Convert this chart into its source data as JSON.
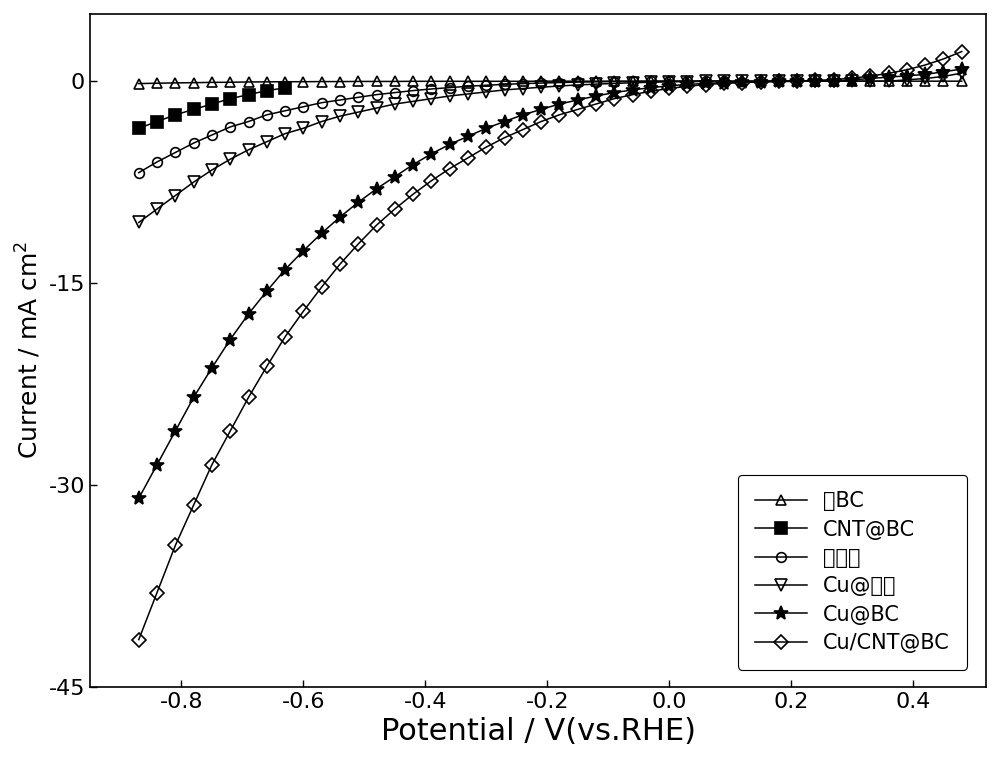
{
  "xlabel": "Potential / V(vs.RHE)",
  "ylabel_part1": "Current / mA cm",
  "ylabel_exp": "2",
  "xlim": [
    -0.95,
    0.52
  ],
  "ylim": [
    -45,
    5
  ],
  "yticks": [
    0,
    -15,
    -30,
    -45
  ],
  "xticks": [
    -0.8,
    -0.6,
    -0.4,
    -0.2,
    0.0,
    0.2,
    0.4
  ],
  "background_color": "#ffffff",
  "series": [
    {
      "label": "绬BC",
      "marker": "^",
      "marker_fill": "none",
      "x": [
        -0.87,
        -0.84,
        -0.81,
        -0.78,
        -0.75,
        -0.72,
        -0.69,
        -0.66,
        -0.63,
        -0.6,
        -0.57,
        -0.54,
        -0.51,
        -0.48,
        -0.45,
        -0.42,
        -0.39,
        -0.36,
        -0.33,
        -0.3,
        -0.27,
        -0.24,
        -0.21,
        -0.18,
        -0.15,
        -0.12,
        -0.09,
        -0.06,
        -0.03,
        0.0,
        0.03,
        0.06,
        0.09,
        0.12,
        0.15,
        0.18,
        0.21,
        0.24,
        0.27,
        0.3,
        0.33,
        0.36,
        0.39,
        0.42,
        0.45,
        0.48
      ],
      "y": [
        -0.18,
        -0.15,
        -0.13,
        -0.11,
        -0.09,
        -0.08,
        -0.06,
        -0.05,
        -0.04,
        -0.04,
        -0.03,
        -0.03,
        -0.02,
        -0.02,
        -0.02,
        -0.01,
        -0.01,
        -0.01,
        -0.01,
        -0.01,
        -0.01,
        -0.01,
        0.0,
        0.0,
        0.0,
        0.0,
        0.0,
        0.0,
        0.0,
        0.0,
        0.0,
        0.0,
        0.0,
        0.0,
        0.0,
        0.0,
        0.0,
        0.0,
        0.0,
        0.0,
        0.0,
        0.0,
        0.0,
        0.0,
        0.0,
        0.0
      ]
    },
    {
      "label": "CNT@BC",
      "marker": "s",
      "marker_fill": "full",
      "x": [
        -0.87,
        -0.84,
        -0.81,
        -0.78,
        -0.75,
        -0.72,
        -0.69,
        -0.66,
        -0.63
      ],
      "y": [
        -3.5,
        -3.0,
        -2.5,
        -2.1,
        -1.7,
        -1.3,
        -1.0,
        -0.7,
        -0.5
      ]
    },
    {
      "label": "绬碳布",
      "marker": "o",
      "marker_fill": "none",
      "x": [
        -0.87,
        -0.84,
        -0.81,
        -0.78,
        -0.75,
        -0.72,
        -0.69,
        -0.66,
        -0.63,
        -0.6,
        -0.57,
        -0.54,
        -0.51,
        -0.48,
        -0.45,
        -0.42,
        -0.39,
        -0.36,
        -0.33,
        -0.3,
        -0.27,
        -0.24,
        -0.21,
        -0.18,
        -0.15,
        -0.12,
        -0.09,
        -0.06,
        -0.03,
        0.0,
        0.03,
        0.06,
        0.09
      ],
      "y": [
        -6.8,
        -6.0,
        -5.3,
        -4.6,
        -4.0,
        -3.4,
        -3.0,
        -2.5,
        -2.2,
        -1.9,
        -1.6,
        -1.4,
        -1.2,
        -1.0,
        -0.85,
        -0.7,
        -0.58,
        -0.48,
        -0.38,
        -0.3,
        -0.24,
        -0.18,
        -0.14,
        -0.1,
        -0.07,
        -0.05,
        -0.03,
        -0.02,
        -0.01,
        0.0,
        0.0,
        0.0,
        0.0
      ]
    },
    {
      "label": "Cu@碳布",
      "marker": "v",
      "marker_fill": "none",
      "x": [
        -0.87,
        -0.84,
        -0.81,
        -0.78,
        -0.75,
        -0.72,
        -0.69,
        -0.66,
        -0.63,
        -0.6,
        -0.57,
        -0.54,
        -0.51,
        -0.48,
        -0.45,
        -0.42,
        -0.39,
        -0.36,
        -0.33,
        -0.3,
        -0.27,
        -0.24,
        -0.21,
        -0.18,
        -0.15,
        -0.12,
        -0.09,
        -0.06,
        -0.03,
        0.0,
        0.03,
        0.06,
        0.09,
        0.12,
        0.15,
        0.18,
        0.21,
        0.24,
        0.27,
        0.3,
        0.33,
        0.36,
        0.39,
        0.42,
        0.45,
        0.48
      ],
      "y": [
        -10.5,
        -9.5,
        -8.5,
        -7.5,
        -6.6,
        -5.8,
        -5.1,
        -4.5,
        -3.9,
        -3.5,
        -3.0,
        -2.6,
        -2.3,
        -2.0,
        -1.7,
        -1.5,
        -1.3,
        -1.1,
        -0.95,
        -0.8,
        -0.65,
        -0.55,
        -0.45,
        -0.36,
        -0.28,
        -0.22,
        -0.17,
        -0.12,
        -0.08,
        -0.05,
        -0.03,
        -0.02,
        -0.01,
        0.0,
        0.0,
        0.0,
        0.0,
        0.0,
        0.0,
        0.0,
        0.0,
        0.0,
        0.1,
        0.2,
        0.35,
        0.6
      ]
    },
    {
      "label": "Cu@BC",
      "marker": "*",
      "marker_fill": "full",
      "x": [
        -0.87,
        -0.84,
        -0.81,
        -0.78,
        -0.75,
        -0.72,
        -0.69,
        -0.66,
        -0.63,
        -0.6,
        -0.57,
        -0.54,
        -0.51,
        -0.48,
        -0.45,
        -0.42,
        -0.39,
        -0.36,
        -0.33,
        -0.3,
        -0.27,
        -0.24,
        -0.21,
        -0.18,
        -0.15,
        -0.12,
        -0.09,
        -0.06,
        -0.03,
        0.0,
        0.03,
        0.06,
        0.09,
        0.12,
        0.15,
        0.18,
        0.21,
        0.24,
        0.27,
        0.3,
        0.33,
        0.36,
        0.39,
        0.42,
        0.45,
        0.48
      ],
      "y": [
        -31.0,
        -28.5,
        -26.0,
        -23.5,
        -21.3,
        -19.2,
        -17.3,
        -15.6,
        -14.0,
        -12.6,
        -11.3,
        -10.1,
        -9.0,
        -8.0,
        -7.1,
        -6.2,
        -5.4,
        -4.7,
        -4.1,
        -3.5,
        -3.0,
        -2.5,
        -2.1,
        -1.7,
        -1.4,
        -1.1,
        -0.85,
        -0.65,
        -0.48,
        -0.35,
        -0.24,
        -0.17,
        -0.11,
        -0.07,
        -0.04,
        -0.02,
        -0.01,
        0.0,
        0.0,
        0.1,
        0.2,
        0.3,
        0.4,
        0.5,
        0.7,
        0.9
      ]
    },
    {
      "label": "Cu/CNT@BC",
      "marker": "D",
      "marker_fill": "none",
      "x": [
        -0.87,
        -0.84,
        -0.81,
        -0.78,
        -0.75,
        -0.72,
        -0.69,
        -0.66,
        -0.63,
        -0.6,
        -0.57,
        -0.54,
        -0.51,
        -0.48,
        -0.45,
        -0.42,
        -0.39,
        -0.36,
        -0.33,
        -0.3,
        -0.27,
        -0.24,
        -0.21,
        -0.18,
        -0.15,
        -0.12,
        -0.09,
        -0.06,
        -0.03,
        0.0,
        0.03,
        0.06,
        0.09,
        0.12,
        0.15,
        0.18,
        0.21,
        0.24,
        0.27,
        0.3,
        0.33,
        0.36,
        0.39,
        0.42,
        0.45,
        0.48
      ],
      "y": [
        -41.5,
        -38.0,
        -34.5,
        -31.5,
        -28.5,
        -26.0,
        -23.5,
        -21.2,
        -19.0,
        -17.1,
        -15.3,
        -13.6,
        -12.1,
        -10.7,
        -9.5,
        -8.4,
        -7.4,
        -6.5,
        -5.7,
        -4.9,
        -4.2,
        -3.6,
        -3.0,
        -2.5,
        -2.1,
        -1.7,
        -1.3,
        -1.0,
        -0.75,
        -0.54,
        -0.38,
        -0.25,
        -0.16,
        -0.1,
        -0.05,
        -0.02,
        0.0,
        0.05,
        0.12,
        0.22,
        0.38,
        0.58,
        0.85,
        1.2,
        1.65,
        2.2
      ]
    }
  ],
  "legend_loc": "lower right",
  "xlabel_fontsize": 22,
  "ylabel_fontsize": 18,
  "tick_fontsize": 16,
  "legend_fontsize": 15
}
